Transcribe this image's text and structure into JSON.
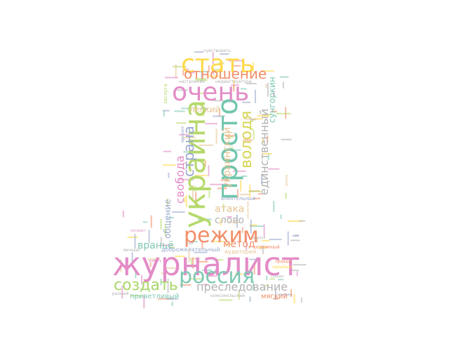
{
  "words": [
    {
      "text": "журналист",
      "color": "#e38cc7"
    },
    {
      "text": "россия",
      "color": "#7fc8b4"
    },
    {
      "text": "режим",
      "color": "#f28e67"
    },
    {
      "text": "украина",
      "color": "#b5d96b"
    },
    {
      "text": "просто",
      "color": "#70c6ad"
    },
    {
      "text": "очень",
      "color": "#e38cc7"
    },
    {
      "text": "стать",
      "color": "#ffd94a"
    },
    {
      "text": "отношение",
      "color": "#f28e67"
    },
    {
      "text": "володя",
      "color": "#d6d657"
    },
    {
      "text": "страна",
      "color": "#9aa9cc"
    },
    {
      "text": "создать",
      "color": "#a9d76a"
    },
    {
      "text": "преследование",
      "color": "#b2b2b2"
    },
    {
      "text": "единственный",
      "color": "#b2b2b2"
    },
    {
      "text": "украинский",
      "color": "#e5c494"
    },
    {
      "text": "свобода",
      "color": "#e38cc7"
    },
    {
      "text": "атака",
      "color": "#e5c494"
    },
    {
      "text": "метод",
      "color": "#f28e67"
    },
    {
      "text": "враньё",
      "color": "#7fc8b4"
    },
    {
      "text": "слово",
      "color": "#b2b2b2"
    },
    {
      "text": "общение",
      "color": "#9aa9cc"
    },
    {
      "text": "сунгоркин",
      "color": "#7fc8b4"
    },
    {
      "text": "легкий",
      "color": "#e5c494"
    },
    {
      "text": "приветливый",
      "color": "#7fc8b4"
    },
    {
      "text": "мягкий",
      "color": "#f28e67"
    },
    {
      "text": "доброжелательный",
      "color": "#9aa9cc"
    },
    {
      "text": "аудитория",
      "color": "#e5c494"
    },
    {
      "text": "влиятельный",
      "color": "#9aa9cc"
    },
    {
      "text": "огромный",
      "color": "#f28e67"
    },
    {
      "text": "заслуга",
      "color": "#b5d96b"
    },
    {
      "text": "настроение",
      "color": "#b2b2b2"
    },
    {
      "text": "недиаструктура",
      "color": "#b2b2b2"
    },
    {
      "text": "чувствовать",
      "color": "#b2b2b2"
    },
    {
      "text": "ирония",
      "color": "#9aa9cc"
    },
    {
      "text": "личный",
      "color": "#b2b2b2"
    },
    {
      "text": "правда",
      "color": "#f28e67"
    },
    {
      "text": "серьёзно",
      "color": "#ffd94a"
    },
    {
      "text": "комсомольский",
      "color": "#b2b2b2"
    },
    {
      "text": "разный",
      "color": "#b2b2b2"
    },
    {
      "text": "давать",
      "color": "#e38cc7"
    },
    {
      "text": "стиль",
      "color": "#e5c494"
    },
    {
      "text": "патриот",
      "color": "#e38cc7"
    },
    {
      "text": "сам",
      "color": "#b2b2b2"
    },
    {
      "text": "время",
      "color": "#e5c494"
    },
    {
      "text": "несмотря",
      "color": "#e5c494"
    },
    {
      "text": "друзья",
      "color": "#b2b2b2"
    },
    {
      "text": "создан",
      "color": "#b2b2b2"
    }
  ]
}
